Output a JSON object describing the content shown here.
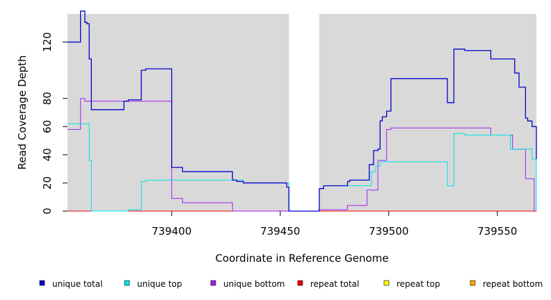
{
  "chart_data": {
    "type": "line",
    "title": "",
    "xlabel": "Coordinate in Reference Genome",
    "ylabel": "Read Coverage Depth",
    "xlim": [
      739352,
      739568
    ],
    "ylim": [
      0,
      140
    ],
    "x_ticks": [
      739400,
      739450,
      739500,
      739550
    ],
    "x_tick_labels": [
      "739400",
      "739450",
      "739500",
      "739550"
    ],
    "y_ticks": [
      0,
      20,
      40,
      60,
      80,
      120
    ],
    "y_tick_labels": [
      "0",
      "20",
      "40",
      "60",
      "80",
      "120"
    ],
    "gap": [
      739454,
      739468
    ],
    "legend_position": "bottom",
    "series": [
      {
        "name": "unique total",
        "color": "#0000cc",
        "x": [
          739352,
          739358,
          739358,
          739360,
          739360,
          739361,
          739361,
          739362,
          739362,
          739363,
          739363,
          739378,
          739378,
          739380,
          739380,
          739386,
          739386,
          739388,
          739388,
          739400,
          739400,
          739405,
          739405,
          739428,
          739428,
          739430,
          739430,
          739433,
          739433,
          739453,
          739453,
          739454,
          739454,
          739468,
          739468,
          739470,
          739470,
          739481,
          739481,
          739482,
          739482,
          739491,
          739491,
          739493,
          739493,
          739495,
          739495,
          739496,
          739496,
          739497,
          739497,
          739499,
          739499,
          739501,
          739501,
          739527,
          739527,
          739530,
          739530,
          739535,
          739535,
          739547,
          739547,
          739558,
          739558,
          739560,
          739560,
          739563,
          739563,
          739564,
          739564,
          739566,
          739566,
          739568,
          739568
        ],
        "y": [
          120,
          120,
          142,
          142,
          134,
          134,
          133,
          133,
          108,
          108,
          72,
          72,
          78,
          78,
          79,
          79,
          100,
          100,
          101,
          101,
          31,
          31,
          28,
          28,
          22,
          22,
          21,
          21,
          20,
          20,
          17,
          17,
          0,
          0,
          16,
          16,
          18,
          18,
          21,
          21,
          22,
          22,
          33,
          33,
          43,
          43,
          44,
          44,
          64,
          64,
          67,
          67,
          71,
          71,
          94,
          94,
          77,
          77,
          115,
          115,
          114,
          114,
          108,
          108,
          98,
          98,
          88,
          88,
          66,
          66,
          64,
          64,
          60,
          60,
          37
        ]
      },
      {
        "name": "unique top",
        "color": "#00e5e5",
        "x": [
          739352,
          739362,
          739362,
          739363,
          739363,
          739380,
          739380,
          739386,
          739386,
          739388,
          739388,
          739433,
          739433,
          739454,
          739454,
          739468,
          739468,
          739470,
          739470,
          739492,
          739492,
          739494,
          739494,
          739496,
          739496,
          739527,
          739527,
          739530,
          739530,
          739535,
          739535,
          739556,
          739556,
          739566,
          739566,
          739568,
          739568
        ],
        "y": [
          62,
          62,
          36,
          36,
          0,
          0,
          1,
          1,
          21,
          21,
          22,
          22,
          20,
          20,
          0,
          0,
          16,
          16,
          18,
          18,
          28,
          28,
          32,
          32,
          35,
          35,
          18,
          18,
          55,
          55,
          54,
          54,
          44,
          44,
          37,
          37,
          0
        ]
      },
      {
        "name": "unique bottom",
        "color": "#a020f0",
        "x": [
          739352,
          739358,
          739358,
          739360,
          739360,
          739400,
          739400,
          739405,
          739405,
          739428,
          739428,
          739468,
          739468,
          739481,
          739481,
          739490,
          739490,
          739495,
          739495,
          739499,
          739499,
          739501,
          739501,
          739547,
          739547,
          739557,
          739557,
          739563,
          739563,
          739567,
          739567
        ],
        "y": [
          58,
          58,
          80,
          80,
          78,
          78,
          9,
          9,
          6,
          6,
          0,
          0,
          1,
          1,
          4,
          4,
          15,
          15,
          36,
          36,
          58,
          58,
          59,
          59,
          54,
          54,
          44,
          44,
          23,
          23,
          0
        ]
      },
      {
        "name": "repeat total",
        "color": "#ee0000",
        "x": [
          739352,
          739568
        ],
        "y": [
          0,
          0
        ]
      },
      {
        "name": "repeat top",
        "color": "#ffff00",
        "x": [
          739352,
          739568
        ],
        "y": [
          0,
          0
        ]
      },
      {
        "name": "repeat bottom",
        "color": "#ffa500",
        "x": [
          739352,
          739568
        ],
        "y": [
          0,
          0
        ]
      }
    ],
    "colors": {
      "plot_background": "#d9d9d9",
      "gap_fill": "#ffffff"
    }
  }
}
